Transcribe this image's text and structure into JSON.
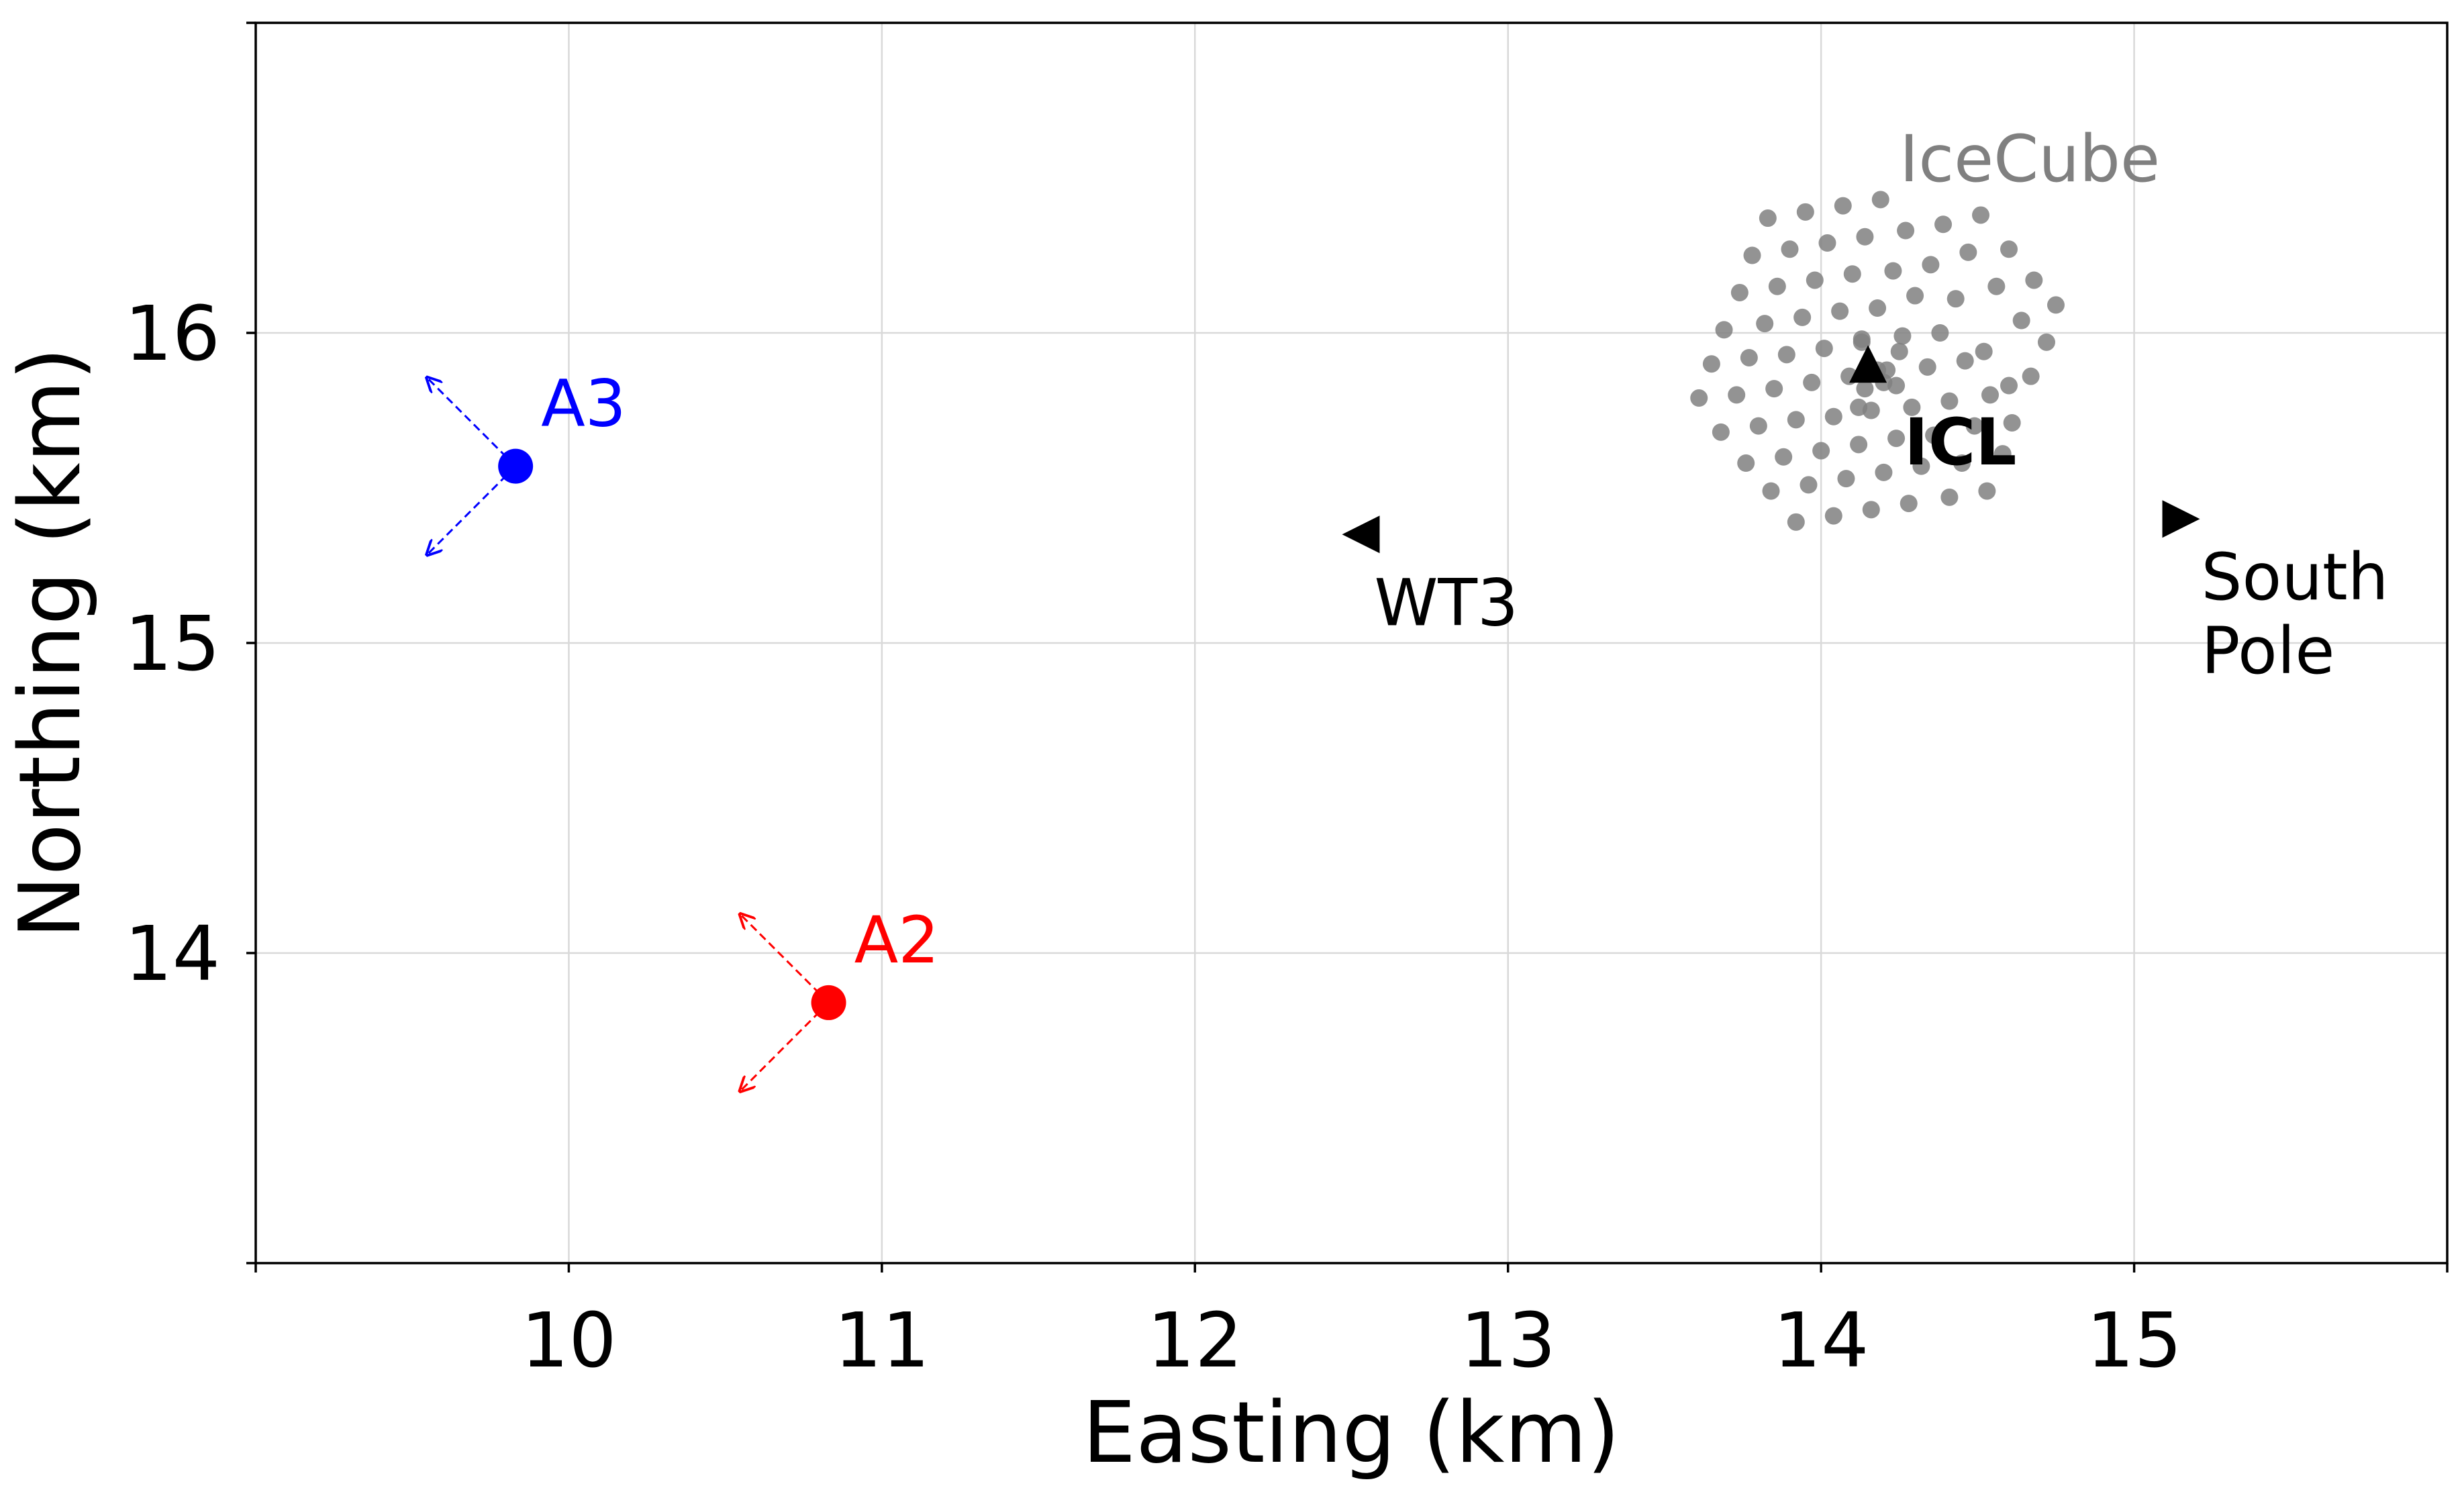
{
  "chart_data": {
    "type": "scatter",
    "title": "",
    "xlabel": "Easting (km)",
    "ylabel": "Northing (km)",
    "xlim": [
      9.0,
      16.0
    ],
    "ylim": [
      13.0,
      17.0
    ],
    "xticks": [
      10,
      11,
      12,
      13,
      14,
      15
    ],
    "yticks": [
      14,
      15,
      16
    ],
    "grid": true,
    "stations": [
      {
        "label": "A3",
        "x": 9.83,
        "y": 15.57,
        "color": "#0000ff"
      },
      {
        "label": "A2",
        "x": 10.83,
        "y": 13.84,
        "color": "#ff0000"
      }
    ],
    "landmarks": [
      {
        "label": "WT3",
        "x": 12.53,
        "y": 15.35,
        "marker": "triangle-left"
      },
      {
        "label": "ICL",
        "x": 14.15,
        "y": 15.9,
        "marker": "triangle-up"
      },
      {
        "label": "South Pole",
        "label_lines": [
          "South",
          "Pole"
        ],
        "x": 15.15,
        "y": 15.4,
        "marker": "triangle-right"
      }
    ],
    "icecube": {
      "label": "IceCube",
      "color": "#808080",
      "strings": [
        [
          13.83,
          16.37
        ],
        [
          13.95,
          16.39
        ],
        [
          14.07,
          16.41
        ],
        [
          14.19,
          16.43
        ],
        [
          14.39,
          16.35
        ],
        [
          14.51,
          16.38
        ],
        [
          13.78,
          16.25
        ],
        [
          13.9,
          16.27
        ],
        [
          14.02,
          16.29
        ],
        [
          14.14,
          16.31
        ],
        [
          14.27,
          16.33
        ],
        [
          14.47,
          16.26
        ],
        [
          14.6,
          16.27
        ],
        [
          13.74,
          16.13
        ],
        [
          13.86,
          16.15
        ],
        [
          13.98,
          16.17
        ],
        [
          14.1,
          16.19
        ],
        [
          14.23,
          16.2
        ],
        [
          14.35,
          16.22
        ],
        [
          14.56,
          16.15
        ],
        [
          14.68,
          16.17
        ],
        [
          13.69,
          16.01
        ],
        [
          13.82,
          16.03
        ],
        [
          13.94,
          16.05
        ],
        [
          14.06,
          16.07
        ],
        [
          14.18,
          16.08
        ],
        [
          14.3,
          16.12
        ],
        [
          14.43,
          16.11
        ],
        [
          14.64,
          16.04
        ],
        [
          14.75,
          16.09
        ],
        [
          13.65,
          15.9
        ],
        [
          13.77,
          15.92
        ],
        [
          13.89,
          15.93
        ],
        [
          14.01,
          15.95
        ],
        [
          14.13,
          15.97
        ],
        [
          14.26,
          15.99
        ],
        [
          14.38,
          16.0
        ],
        [
          14.52,
          15.94
        ],
        [
          14.72,
          15.97
        ],
        [
          13.61,
          15.79
        ],
        [
          13.73,
          15.8
        ],
        [
          13.85,
          15.82
        ],
        [
          13.97,
          15.84
        ],
        [
          14.09,
          15.86
        ],
        [
          14.21,
          15.88
        ],
        [
          14.34,
          15.89
        ],
        [
          14.46,
          15.91
        ],
        [
          14.6,
          15.83
        ],
        [
          14.67,
          15.86
        ],
        [
          13.68,
          15.68
        ],
        [
          13.8,
          15.7
        ],
        [
          13.92,
          15.72
        ],
        [
          14.04,
          15.73
        ],
        [
          14.16,
          15.75
        ],
        [
          14.29,
          15.76
        ],
        [
          14.41,
          15.78
        ],
        [
          14.54,
          15.8
        ],
        [
          13.76,
          15.58
        ],
        [
          13.88,
          15.6
        ],
        [
          14.0,
          15.62
        ],
        [
          14.12,
          15.64
        ],
        [
          14.24,
          15.66
        ],
        [
          14.36,
          15.67
        ],
        [
          14.49,
          15.7
        ],
        [
          14.61,
          15.71
        ],
        [
          13.84,
          15.49
        ],
        [
          13.96,
          15.51
        ],
        [
          14.08,
          15.53
        ],
        [
          14.2,
          15.55
        ],
        [
          14.32,
          15.57
        ],
        [
          14.45,
          15.58
        ],
        [
          14.58,
          15.61
        ],
        [
          13.92,
          15.39
        ],
        [
          14.04,
          15.41
        ],
        [
          14.16,
          15.43
        ],
        [
          14.28,
          15.45
        ],
        [
          14.41,
          15.47
        ],
        [
          14.53,
          15.49
        ],
        [
          14.14,
          15.82
        ],
        [
          14.2,
          15.84
        ],
        [
          14.13,
          15.98
        ],
        [
          14.25,
          15.94
        ],
        [
          14.18,
          15.88
        ],
        [
          14.12,
          15.76
        ],
        [
          14.24,
          15.83
        ]
      ]
    }
  }
}
